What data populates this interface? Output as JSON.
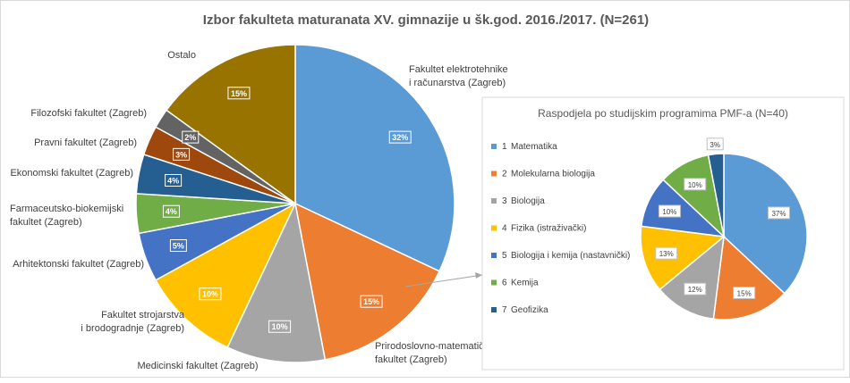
{
  "chart_data": [
    {
      "type": "pie",
      "title": "Izbor fakulteta maturanata XV. gimnazije u šk.god. 2016./2017. (N=261)",
      "categories": [
        "Fakultet elektrotehnike i računarstva (Zagreb)",
        "Prirodoslovno-matematički fakultet (Zagreb)",
        "Medicinski fakultet (Zagreb)",
        "Fakultet strojarstva i brodogradnje (Zagreb)",
        "Arhitektonski fakultet (Zagreb)",
        "Farmaceutsko-biokemijski fakultet (Zagreb)",
        "Ekonomski fakultet (Zagreb)",
        "Pravni fakultet (Zagreb)",
        "Filozofski fakultet (Zagreb)",
        "Ostalo"
      ],
      "label_lines": [
        [
          "Fakultet elektrotehnike",
          "i računarstva (Zagreb)"
        ],
        [
          "Prirodoslovno-matematički",
          "fakultet (Zagreb)"
        ],
        [
          "Medicinski fakultet (Zagreb)"
        ],
        [
          "Fakultet strojarstva",
          "i brodogradnje (Zagreb)"
        ],
        [
          "Arhitektonski fakultet (Zagreb)"
        ],
        [
          "Farmaceutsko-biokemijski",
          "fakultet (Zagreb)"
        ],
        [
          "Ekonomski fakultet (Zagreb)"
        ],
        [
          "Pravni fakultet (Zagreb)"
        ],
        [
          "Filozofski fakultet (Zagreb)"
        ],
        [
          "Ostalo"
        ]
      ],
      "values": [
        32,
        15,
        10,
        10,
        5,
        4,
        4,
        3,
        2,
        15
      ],
      "value_labels": [
        "32%",
        "15%",
        "10%",
        "10%",
        "5%",
        "4%",
        "4%",
        "3%",
        "2%",
        "15%"
      ],
      "colors": [
        "#5b9bd5",
        "#ed7d31",
        "#a5a5a5",
        "#ffc000",
        "#4472c4",
        "#70ad47",
        "#255e91",
        "#9e480e",
        "#636363",
        "#997300"
      ],
      "legend": "none"
    },
    {
      "type": "pie",
      "title": "Raspodjela po studijskim programima PMF-a (N=40)",
      "categories": [
        "Matematika",
        "Molekularna biologija",
        "Biologija",
        "Fizika (istraživački)",
        "Biologija i kemija (nastavnički)",
        "Kemija",
        "Geofizika"
      ],
      "legend_numbers": [
        "1",
        "2",
        "3",
        "4",
        "5",
        "6",
        "7"
      ],
      "values": [
        37,
        15,
        12,
        13,
        10,
        10,
        3
      ],
      "value_labels": [
        "37%",
        "15%",
        "12%",
        "13%",
        "10%",
        "10%",
        "3%"
      ],
      "colors": [
        "#5b9bd5",
        "#ed7d31",
        "#a5a5a5",
        "#ffc000",
        "#4472c4",
        "#70ad47",
        "#255e91"
      ],
      "legend": "left"
    }
  ]
}
